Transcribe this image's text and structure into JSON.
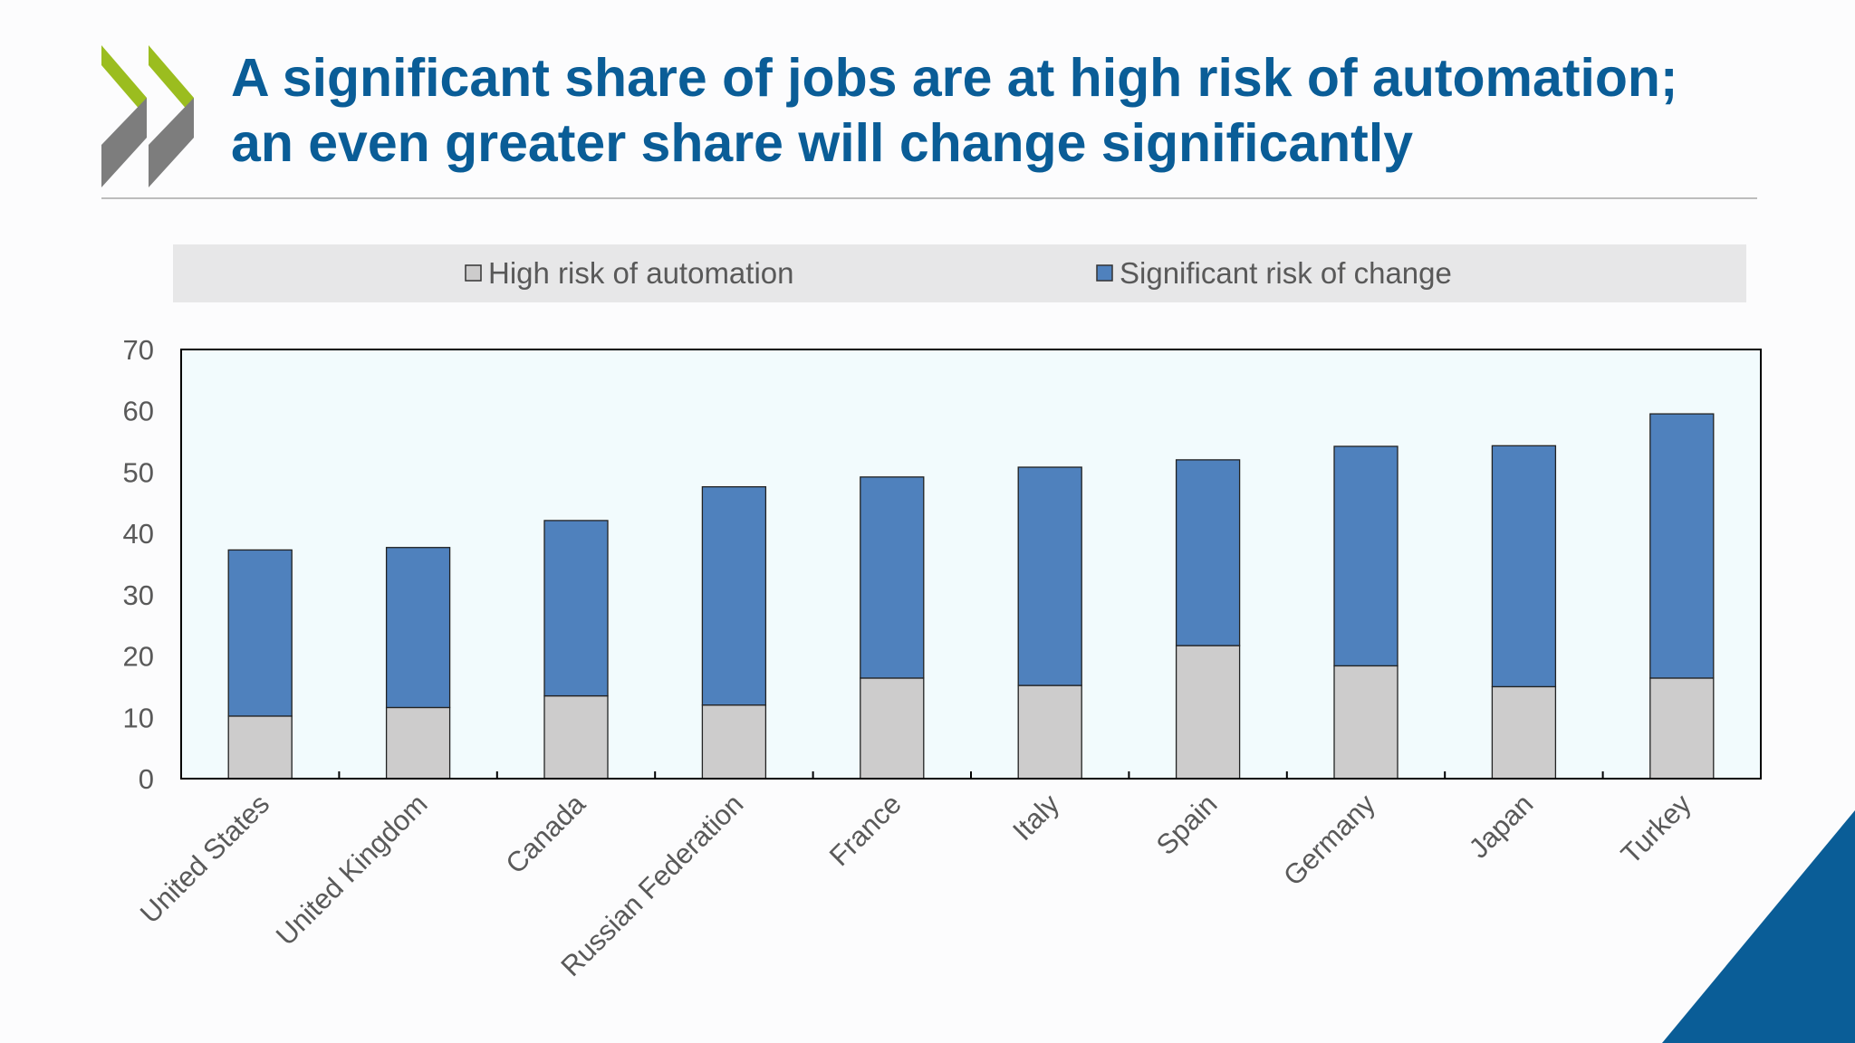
{
  "slide": {
    "title_line1": "A significant share of jobs are at high risk of automation;",
    "title_line2": "an even greater share will change significantly"
  },
  "colors": {
    "title": "#0a5d97",
    "logo_green": "#9bbd1f",
    "logo_gray": "#7d7d7d",
    "high_risk": "#cdcccc",
    "significant_change": "#4f81bd",
    "plot_background": "#f2fbfd",
    "legend_background": "#e7e7e8",
    "corner_triangle": "#0a5d97"
  },
  "chart_data": {
    "type": "bar",
    "stacked": true,
    "title": "",
    "xlabel": "",
    "ylabel": "",
    "ylim": [
      0,
      70
    ],
    "yticks": [
      0,
      10,
      20,
      30,
      40,
      50,
      60,
      70
    ],
    "grid": false,
    "legend": "top-center",
    "categories": [
      "United States",
      "United Kingdom",
      "Canada",
      "Russian Federation",
      "France",
      "Italy",
      "Spain",
      "Germany",
      "Japan",
      "Turkey"
    ],
    "series": [
      {
        "name": "High risk of automation",
        "color": "#cdcccc",
        "values": [
          10.2,
          11.6,
          13.5,
          12.0,
          16.4,
          15.2,
          21.7,
          18.4,
          15.0,
          16.4
        ]
      },
      {
        "name": "Significant risk of change",
        "color": "#4f81bd",
        "values": [
          27.1,
          26.1,
          28.6,
          35.6,
          32.8,
          35.6,
          30.3,
          35.8,
          39.3,
          43.1
        ]
      }
    ]
  }
}
